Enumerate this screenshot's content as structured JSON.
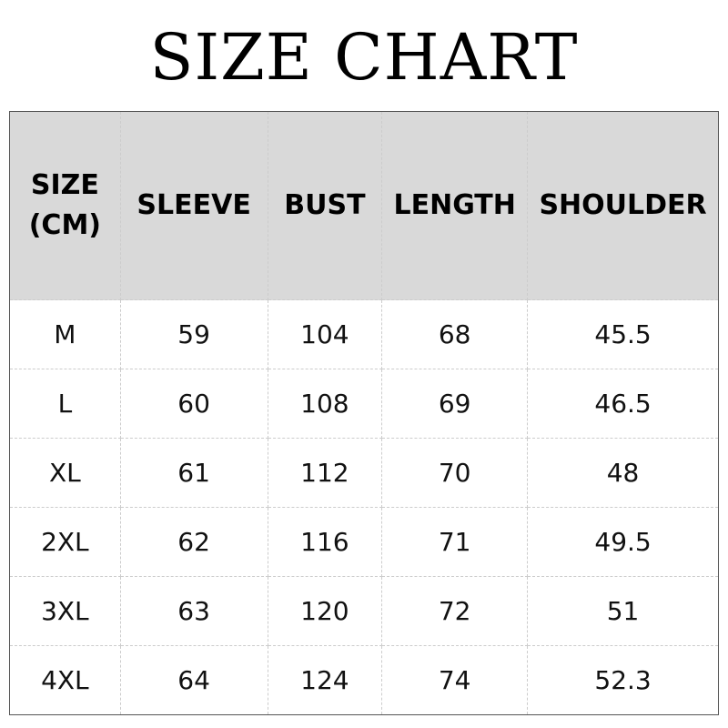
{
  "title": "SIZE CHART",
  "table": {
    "headers": [
      "SIZE",
      "(CM)",
      "SLEEVE",
      "BUST",
      "LENGTH",
      "SHOULDER"
    ],
    "rows": [
      [
        "M",
        "59",
        "104",
        "68",
        "45.5"
      ],
      [
        "L",
        "60",
        "108",
        "69",
        "46.5"
      ],
      [
        "XL",
        "61",
        "112",
        "70",
        "48"
      ],
      [
        "2XL",
        "62",
        "116",
        "71",
        "49.5"
      ],
      [
        "3XL",
        "63",
        "120",
        "72",
        "51"
      ],
      [
        "4XL",
        "64",
        "124",
        "74",
        "52.3"
      ]
    ]
  }
}
